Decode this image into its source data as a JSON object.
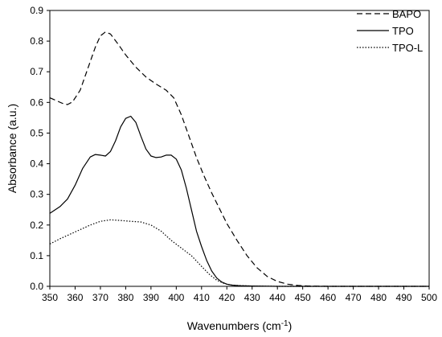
{
  "chart_data": {
    "type": "line",
    "title": "",
    "xlabel": "Wavenumbers (cm",
    "xlabel_sup": "-1",
    "xlabel_end": ")",
    "ylabel": "Absorbance (a.u.)",
    "xlim": [
      350,
      500
    ],
    "ylim": [
      0.0,
      0.9
    ],
    "xticks": [
      350,
      360,
      370,
      380,
      390,
      400,
      410,
      420,
      430,
      440,
      450,
      460,
      470,
      480,
      490,
      500
    ],
    "yticks": [
      0.0,
      0.1,
      0.2,
      0.3,
      0.4,
      0.5,
      0.6,
      0.7,
      0.8,
      0.9
    ],
    "ytick_labels": [
      "0.0",
      "0.1",
      "0.2",
      "0.3",
      "0.4",
      "0.5",
      "0.6",
      "0.7",
      "0.8",
      "0.9"
    ],
    "grid": false,
    "legend_position": "top-right",
    "series": [
      {
        "name": "BAPO",
        "style": "dashed",
        "color": "#000000",
        "points": [
          [
            350,
            0.615
          ],
          [
            352,
            0.608
          ],
          [
            355,
            0.597
          ],
          [
            357,
            0.593
          ],
          [
            359,
            0.602
          ],
          [
            362,
            0.64
          ],
          [
            365,
            0.71
          ],
          [
            368,
            0.78
          ],
          [
            370,
            0.817
          ],
          [
            372,
            0.83
          ],
          [
            374,
            0.823
          ],
          [
            377,
            0.79
          ],
          [
            380,
            0.755
          ],
          [
            384,
            0.715
          ],
          [
            388,
            0.683
          ],
          [
            392,
            0.66
          ],
          [
            396,
            0.64
          ],
          [
            399,
            0.615
          ],
          [
            402,
            0.56
          ],
          [
            405,
            0.49
          ],
          [
            408,
            0.42
          ],
          [
            411,
            0.36
          ],
          [
            414,
            0.305
          ],
          [
            417,
            0.255
          ],
          [
            420,
            0.205
          ],
          [
            424,
            0.15
          ],
          [
            428,
            0.1
          ],
          [
            432,
            0.06
          ],
          [
            436,
            0.032
          ],
          [
            440,
            0.016
          ],
          [
            444,
            0.007
          ],
          [
            448,
            0.003
          ],
          [
            452,
            0.001
          ],
          [
            460,
            0.0
          ],
          [
            470,
            0.0
          ],
          [
            480,
            0.0
          ],
          [
            490,
            0.0
          ],
          [
            500,
            0.0
          ]
        ]
      },
      {
        "name": "TPO",
        "style": "solid",
        "color": "#000000",
        "points": [
          [
            350,
            0.238
          ],
          [
            354,
            0.26
          ],
          [
            357,
            0.285
          ],
          [
            360,
            0.33
          ],
          [
            363,
            0.385
          ],
          [
            366,
            0.422
          ],
          [
            368,
            0.43
          ],
          [
            370,
            0.428
          ],
          [
            372,
            0.425
          ],
          [
            374,
            0.44
          ],
          [
            376,
            0.475
          ],
          [
            378,
            0.52
          ],
          [
            380,
            0.548
          ],
          [
            382,
            0.555
          ],
          [
            384,
            0.535
          ],
          [
            386,
            0.49
          ],
          [
            388,
            0.448
          ],
          [
            390,
            0.425
          ],
          [
            392,
            0.42
          ],
          [
            394,
            0.422
          ],
          [
            396,
            0.428
          ],
          [
            398,
            0.428
          ],
          [
            400,
            0.415
          ],
          [
            402,
            0.38
          ],
          [
            404,
            0.32
          ],
          [
            406,
            0.25
          ],
          [
            408,
            0.18
          ],
          [
            410,
            0.13
          ],
          [
            412,
            0.085
          ],
          [
            414,
            0.05
          ],
          [
            416,
            0.027
          ],
          [
            418,
            0.014
          ],
          [
            420,
            0.007
          ],
          [
            422,
            0.004
          ],
          [
            425,
            0.002
          ],
          [
            430,
            0.001
          ],
          [
            440,
            0.0
          ],
          [
            460,
            0.0
          ],
          [
            480,
            0.0
          ],
          [
            500,
            0.0
          ]
        ]
      },
      {
        "name": "TPO-L",
        "style": "dotted",
        "color": "#000000",
        "points": [
          [
            350,
            0.138
          ],
          [
            354,
            0.155
          ],
          [
            358,
            0.17
          ],
          [
            362,
            0.185
          ],
          [
            366,
            0.2
          ],
          [
            370,
            0.212
          ],
          [
            374,
            0.217
          ],
          [
            378,
            0.215
          ],
          [
            382,
            0.212
          ],
          [
            386,
            0.21
          ],
          [
            390,
            0.2
          ],
          [
            394,
            0.18
          ],
          [
            398,
            0.15
          ],
          [
            402,
            0.125
          ],
          [
            406,
            0.1
          ],
          [
            410,
            0.065
          ],
          [
            413,
            0.04
          ],
          [
            416,
            0.02
          ],
          [
            419,
            0.009
          ],
          [
            422,
            0.004
          ],
          [
            426,
            0.002
          ],
          [
            430,
            0.001
          ],
          [
            440,
            0.0
          ],
          [
            460,
            0.0
          ],
          [
            480,
            0.0
          ],
          [
            500,
            0.0
          ]
        ]
      }
    ]
  }
}
